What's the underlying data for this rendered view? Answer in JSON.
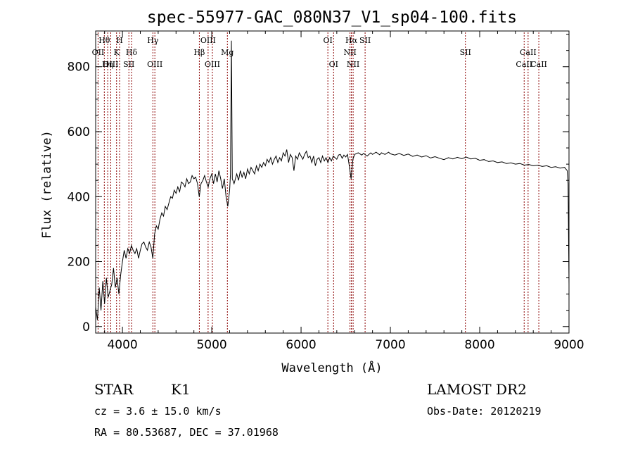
{
  "chart_data": {
    "type": "line",
    "title": "spec-55977-GAC_080N37_V1_sp04-100.fits",
    "xlabel": "Wavelength (Å)",
    "ylabel": "Flux (relative)",
    "xlim": [
      3700,
      9100
    ],
    "ylim": [
      -20,
      910
    ],
    "x_ticks": [
      4000,
      5000,
      6000,
      7000,
      8000,
      9000
    ],
    "y_ticks": [
      0,
      200,
      400,
      600,
      800
    ],
    "grid": false,
    "line_color": "#000000",
    "marker_color": "#8b0000",
    "spectrum": [
      [
        3700,
        60
      ],
      [
        3720,
        20
      ],
      [
        3740,
        120
      ],
      [
        3760,
        50
      ],
      [
        3780,
        140
      ],
      [
        3800,
        70
      ],
      [
        3820,
        150
      ],
      [
        3840,
        90
      ],
      [
        3860,
        110
      ],
      [
        3880,
        130
      ],
      [
        3900,
        180
      ],
      [
        3920,
        120
      ],
      [
        3940,
        150
      ],
      [
        3960,
        100
      ],
      [
        3980,
        160
      ],
      [
        4000,
        200
      ],
      [
        4020,
        235
      ],
      [
        4040,
        210
      ],
      [
        4060,
        240
      ],
      [
        4080,
        225
      ],
      [
        4100,
        250
      ],
      [
        4120,
        235
      ],
      [
        4140,
        225
      ],
      [
        4160,
        240
      ],
      [
        4180,
        210
      ],
      [
        4200,
        235
      ],
      [
        4220,
        255
      ],
      [
        4240,
        260
      ],
      [
        4260,
        245
      ],
      [
        4280,
        235
      ],
      [
        4300,
        260
      ],
      [
        4320,
        245
      ],
      [
        4340,
        210
      ],
      [
        4360,
        285
      ],
      [
        4380,
        310
      ],
      [
        4400,
        300
      ],
      [
        4420,
        330
      ],
      [
        4440,
        350
      ],
      [
        4460,
        340
      ],
      [
        4480,
        370
      ],
      [
        4500,
        360
      ],
      [
        4520,
        380
      ],
      [
        4540,
        400
      ],
      [
        4560,
        395
      ],
      [
        4580,
        420
      ],
      [
        4600,
        410
      ],
      [
        4620,
        430
      ],
      [
        4640,
        415
      ],
      [
        4660,
        445
      ],
      [
        4680,
        440
      ],
      [
        4700,
        430
      ],
      [
        4720,
        455
      ],
      [
        4740,
        440
      ],
      [
        4760,
        445
      ],
      [
        4780,
        465
      ],
      [
        4800,
        455
      ],
      [
        4820,
        460
      ],
      [
        4840,
        440
      ],
      [
        4860,
        400
      ],
      [
        4880,
        440
      ],
      [
        4900,
        450
      ],
      [
        4920,
        465
      ],
      [
        4940,
        445
      ],
      [
        4960,
        430
      ],
      [
        4980,
        455
      ],
      [
        5000,
        470
      ],
      [
        5020,
        440
      ],
      [
        5040,
        470
      ],
      [
        5060,
        445
      ],
      [
        5080,
        480
      ],
      [
        5100,
        455
      ],
      [
        5120,
        425
      ],
      [
        5140,
        455
      ],
      [
        5160,
        400
      ],
      [
        5180,
        370
      ],
      [
        5200,
        420
      ],
      [
        5210,
        470
      ],
      [
        5220,
        880
      ],
      [
        5230,
        455
      ],
      [
        5250,
        440
      ],
      [
        5280,
        470
      ],
      [
        5300,
        450
      ],
      [
        5320,
        480
      ],
      [
        5340,
        460
      ],
      [
        5360,
        475
      ],
      [
        5380,
        455
      ],
      [
        5400,
        485
      ],
      [
        5420,
        470
      ],
      [
        5440,
        490
      ],
      [
        5460,
        480
      ],
      [
        5480,
        470
      ],
      [
        5500,
        495
      ],
      [
        5520,
        480
      ],
      [
        5540,
        500
      ],
      [
        5560,
        490
      ],
      [
        5580,
        505
      ],
      [
        5600,
        495
      ],
      [
        5620,
        515
      ],
      [
        5640,
        505
      ],
      [
        5660,
        520
      ],
      [
        5680,
        500
      ],
      [
        5700,
        515
      ],
      [
        5720,
        525
      ],
      [
        5740,
        505
      ],
      [
        5760,
        520
      ],
      [
        5780,
        510
      ],
      [
        5800,
        535
      ],
      [
        5820,
        525
      ],
      [
        5840,
        545
      ],
      [
        5860,
        505
      ],
      [
        5880,
        530
      ],
      [
        5900,
        520
      ],
      [
        5920,
        480
      ],
      [
        5940,
        525
      ],
      [
        5960,
        515
      ],
      [
        5980,
        535
      ],
      [
        6000,
        525
      ],
      [
        6020,
        515
      ],
      [
        6040,
        530
      ],
      [
        6060,
        540
      ],
      [
        6080,
        520
      ],
      [
        6100,
        525
      ],
      [
        6120,
        505
      ],
      [
        6140,
        525
      ],
      [
        6160,
        495
      ],
      [
        6180,
        515
      ],
      [
        6200,
        520
      ],
      [
        6220,
        505
      ],
      [
        6240,
        525
      ],
      [
        6260,
        510
      ],
      [
        6280,
        520
      ],
      [
        6300,
        505
      ],
      [
        6320,
        520
      ],
      [
        6340,
        510
      ],
      [
        6360,
        525
      ],
      [
        6380,
        520
      ],
      [
        6400,
        515
      ],
      [
        6420,
        528
      ],
      [
        6440,
        530
      ],
      [
        6460,
        518
      ],
      [
        6480,
        528
      ],
      [
        6500,
        522
      ],
      [
        6520,
        530
      ],
      [
        6540,
        495
      ],
      [
        6560,
        455
      ],
      [
        6580,
        515
      ],
      [
        6600,
        530
      ],
      [
        6640,
        535
      ],
      [
        6680,
        528
      ],
      [
        6700,
        533
      ],
      [
        6740,
        525
      ],
      [
        6780,
        535
      ],
      [
        6800,
        530
      ],
      [
        6840,
        537
      ],
      [
        6880,
        529
      ],
      [
        6900,
        535
      ],
      [
        6940,
        530
      ],
      [
        6980,
        537
      ],
      [
        7000,
        532
      ],
      [
        7050,
        528
      ],
      [
        7100,
        533
      ],
      [
        7150,
        527
      ],
      [
        7200,
        531
      ],
      [
        7250,
        524
      ],
      [
        7300,
        528
      ],
      [
        7350,
        522
      ],
      [
        7400,
        526
      ],
      [
        7450,
        519
      ],
      [
        7500,
        523
      ],
      [
        7550,
        518
      ],
      [
        7600,
        514
      ],
      [
        7650,
        520
      ],
      [
        7700,
        516
      ],
      [
        7750,
        521
      ],
      [
        7800,
        517
      ],
      [
        7850,
        522
      ],
      [
        7900,
        516
      ],
      [
        7950,
        518
      ],
      [
        8000,
        512
      ],
      [
        8050,
        514
      ],
      [
        8100,
        508
      ],
      [
        8150,
        510
      ],
      [
        8200,
        505
      ],
      [
        8250,
        507
      ],
      [
        8300,
        502
      ],
      [
        8350,
        504
      ],
      [
        8400,
        500
      ],
      [
        8450,
        502
      ],
      [
        8500,
        497
      ],
      [
        8550,
        499
      ],
      [
        8600,
        495
      ],
      [
        8650,
        497
      ],
      [
        8700,
        493
      ],
      [
        8750,
        495
      ],
      [
        8800,
        490
      ],
      [
        8850,
        492
      ],
      [
        8900,
        488
      ],
      [
        8950,
        490
      ],
      [
        8980,
        480
      ],
      [
        8990,
        440
      ],
      [
        9000,
        130
      ]
    ],
    "line_markers": [
      {
        "label": "Hθ",
        "wavelength": 3797,
        "row": 0
      },
      {
        "label": "OII",
        "wavelength": 3727,
        "row": 1
      },
      {
        "label": "OIII",
        "wavelength": 3869,
        "row": 2
      },
      {
        "label": "Hη",
        "wavelength": 3835,
        "row": 2
      },
      {
        "label": "H",
        "wavelength": 3968,
        "row": 0
      },
      {
        "label": "K",
        "wavelength": 3934,
        "row": 1
      },
      {
        "label": "Hδ",
        "wavelength": 4102,
        "row": 1
      },
      {
        "label": "SII",
        "wavelength": 4072,
        "row": 2
      },
      {
        "label": "Hγ",
        "wavelength": 4341,
        "row": 0
      },
      {
        "label": "OIII",
        "wavelength": 4363,
        "row": 2
      },
      {
        "label": "OIII",
        "wavelength": 4959,
        "row": 0
      },
      {
        "label": "Hβ",
        "wavelength": 4861,
        "row": 1
      },
      {
        "label": "OIII",
        "wavelength": 5007,
        "row": 2
      },
      {
        "label": "Mg",
        "wavelength": 5175,
        "row": 1
      },
      {
        "label": "OI",
        "wavelength": 6300,
        "row": 0
      },
      {
        "label": "OI",
        "wavelength": 6364,
        "row": 2
      },
      {
        "label": "Hα",
        "wavelength": 6563,
        "row": 0
      },
      {
        "label": "SII",
        "wavelength": 6717,
        "row": 0
      },
      {
        "label": "NII",
        "wavelength": 6548,
        "row": 1
      },
      {
        "label": "NII",
        "wavelength": 6583,
        "row": 2
      },
      {
        "label": "SII",
        "wavelength": 7840,
        "row": 1
      },
      {
        "label": "CaII",
        "wavelength": 8542,
        "row": 1
      },
      {
        "label": "CaII",
        "wavelength": 8498,
        "row": 2
      },
      {
        "label": "CaII",
        "wavelength": 8662,
        "row": 2
      }
    ]
  },
  "info": {
    "object_class": "STAR",
    "subclass": "K1",
    "survey": "LAMOST DR2",
    "cz": "cz = 3.6 ± 15.0 km/s",
    "obs_date": "Obs-Date: 20120219",
    "coords": "RA =  80.53687, DEC =  37.01968"
  }
}
